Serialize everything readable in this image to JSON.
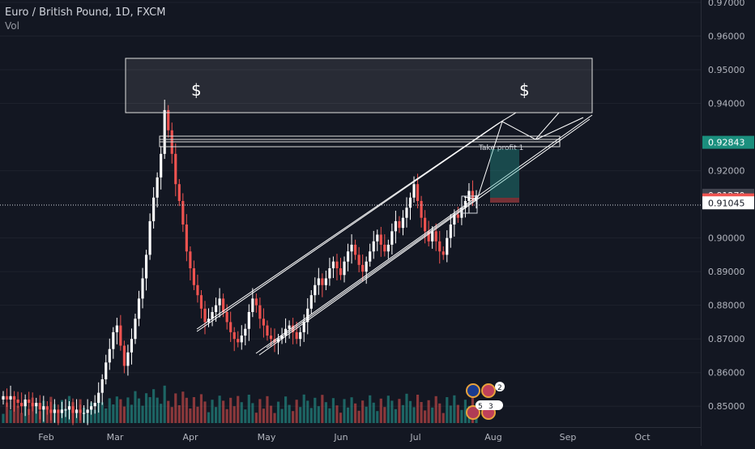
{
  "header": {
    "title": "Euro / British Pound, 1D, FXCM",
    "volume_label": "Vol"
  },
  "price_axis": {
    "ticks": [
      {
        "value": 0.97,
        "label": "0.97000"
      },
      {
        "value": 0.96,
        "label": "0.96000"
      },
      {
        "value": 0.95,
        "label": "0.95000"
      },
      {
        "value": 0.94,
        "label": "0.94000"
      },
      {
        "value": 0.92,
        "label": "0.92000"
      },
      {
        "value": 0.9,
        "label": "0.90000"
      },
      {
        "value": 0.89,
        "label": "0.89000"
      },
      {
        "value": 0.88,
        "label": "0.88000"
      },
      {
        "value": 0.87,
        "label": "0.87000"
      },
      {
        "value": 0.86,
        "label": "0.86000"
      },
      {
        "value": 0.85,
        "label": "0.85000"
      }
    ],
    "badges": [
      {
        "value": 0.92843,
        "label": "0.92843",
        "bg": "#1b8f7e",
        "fg": "#ffffff"
      },
      {
        "value": 0.9127,
        "label": "0.91270",
        "bg": "#434651",
        "fg": "#ffffff"
      },
      {
        "value": 0.91132,
        "label": "0.91132",
        "bg": "#ef5350",
        "fg": "#ffffff"
      },
      {
        "value": 0.91045,
        "label": "0.91045",
        "bg": "#ffffff",
        "fg": "#131722"
      }
    ]
  },
  "time_axis": {
    "labels": [
      "Feb",
      "Mar",
      "Apr",
      "May",
      "Jun",
      "Jul",
      "Aug",
      "Sep",
      "Oct"
    ]
  },
  "annotations": {
    "dollar_left": "$",
    "dollar_right": "$",
    "take_profit": "Take profit 1",
    "event_badges": [
      "2",
      "5",
      "3"
    ]
  },
  "colors": {
    "background": "#131722",
    "up": "#ffffff",
    "down": "#ef5350",
    "vol_up": "#26a69a",
    "vol_down": "#ef5350",
    "drawing": "#ffffff",
    "grid": "#1e222d"
  },
  "chart_data": {
    "type": "candlestick",
    "symbol": "Euro / British Pound",
    "interval": "1D",
    "ylim": [
      0.845,
      0.97
    ],
    "x_labels": [
      "Feb",
      "Mar",
      "Apr",
      "May",
      "Jun",
      "Jul",
      "Aug",
      "Sep",
      "Oct"
    ],
    "key_levels": {
      "current_price": 0.91132,
      "take_profit": 0.92843,
      "last_close_marker": 0.9127,
      "low_marker": 0.91045
    },
    "supply_zone": [
      0.9375,
      0.9525
    ],
    "closes": [
      0.853,
      0.852,
      0.853,
      0.852,
      0.851,
      0.85,
      0.852,
      0.851,
      0.85,
      0.851,
      0.849,
      0.85,
      0.849,
      0.848,
      0.849,
      0.848,
      0.849,
      0.849,
      0.85,
      0.848,
      0.849,
      0.848,
      0.848,
      0.849,
      0.85,
      0.851,
      0.854,
      0.858,
      0.863,
      0.867,
      0.872,
      0.874,
      0.868,
      0.862,
      0.866,
      0.87,
      0.876,
      0.882,
      0.888,
      0.895,
      0.905,
      0.912,
      0.918,
      0.925,
      0.938,
      0.932,
      0.925,
      0.916,
      0.911,
      0.904,
      0.896,
      0.891,
      0.886,
      0.883,
      0.879,
      0.875,
      0.876,
      0.878,
      0.88,
      0.882,
      0.878,
      0.875,
      0.872,
      0.87,
      0.869,
      0.871,
      0.873,
      0.878,
      0.882,
      0.88,
      0.876,
      0.874,
      0.871,
      0.87,
      0.869,
      0.87,
      0.871,
      0.873,
      0.874,
      0.872,
      0.87,
      0.872,
      0.875,
      0.879,
      0.883,
      0.886,
      0.888,
      0.886,
      0.888,
      0.891,
      0.893,
      0.891,
      0.889,
      0.893,
      0.896,
      0.898,
      0.895,
      0.892,
      0.89,
      0.893,
      0.896,
      0.899,
      0.901,
      0.898,
      0.896,
      0.898,
      0.902,
      0.905,
      0.903,
      0.906,
      0.909,
      0.912,
      0.916,
      0.911,
      0.906,
      0.902,
      0.899,
      0.902,
      0.899,
      0.896,
      0.895,
      0.9,
      0.904,
      0.907,
      0.906,
      0.909,
      0.911,
      0.914,
      0.911,
      0.9127
    ]
  }
}
